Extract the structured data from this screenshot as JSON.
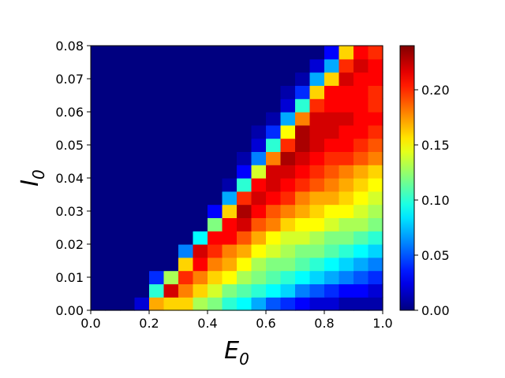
{
  "chart_data": {
    "type": "heatmap",
    "title": "",
    "xlabel": "E",
    "xlabel_sub": "0",
    "ylabel": "I",
    "ylabel_sub": "0",
    "xlim": [
      0.0,
      1.0
    ],
    "ylim": [
      0.0,
      0.08
    ],
    "x_ticks": [
      "0.0",
      "0.2",
      "0.4",
      "0.6",
      "0.8",
      "1.0"
    ],
    "y_ticks": [
      "0.00",
      "0.01",
      "0.02",
      "0.03",
      "0.04",
      "0.05",
      "0.06",
      "0.07",
      "0.08"
    ],
    "x_tick_values": [
      0.0,
      0.2,
      0.4,
      0.6,
      0.8,
      1.0
    ],
    "y_tick_values": [
      0.0,
      0.01,
      0.02,
      0.03,
      0.04,
      0.05,
      0.06,
      0.07,
      0.08
    ],
    "colorbar": {
      "colormap": "jet",
      "min": 0.0,
      "max": 0.24,
      "ticks": [
        "0.00",
        "0.05",
        "0.10",
        "0.15",
        "0.20"
      ],
      "tick_values": [
        0.0,
        0.05,
        0.1,
        0.15,
        0.2
      ]
    },
    "grid": false,
    "nx": 20,
    "ny": 20,
    "x_centers": [
      0.025,
      0.075,
      0.125,
      0.175,
      0.225,
      0.275,
      0.325,
      0.375,
      0.425,
      0.475,
      0.525,
      0.575,
      0.625,
      0.675,
      0.725,
      0.775,
      0.825,
      0.875,
      0.925,
      0.975
    ],
    "y_centers": [
      0.002,
      0.006,
      0.01,
      0.014,
      0.018,
      0.022,
      0.026,
      0.03,
      0.034,
      0.038,
      0.042,
      0.046,
      0.05,
      0.054,
      0.058,
      0.062,
      0.066,
      0.07,
      0.074,
      0.078
    ],
    "values_note": "rows ordered bottom (I0=0.002) to top (I0=0.078)",
    "values": [
      [
        0,
        0,
        0,
        0.02,
        0.17,
        0.16,
        0.16,
        0.13,
        0.12,
        0.1,
        0.09,
        0.07,
        0.05,
        0.04,
        0.03,
        0.02,
        0.02,
        0.01,
        0.01,
        0.01
      ],
      [
        0,
        0,
        0,
        0,
        0.1,
        0.22,
        0.18,
        0.16,
        0.14,
        0.12,
        0.11,
        0.1,
        0.09,
        0.08,
        0.06,
        0.05,
        0.04,
        0.03,
        0.03,
        0.02
      ],
      [
        0,
        0,
        0,
        0,
        0.04,
        0.13,
        0.2,
        0.18,
        0.16,
        0.15,
        0.13,
        0.12,
        0.11,
        0.1,
        0.09,
        0.08,
        0.07,
        0.06,
        0.05,
        0.04
      ],
      [
        0,
        0,
        0,
        0,
        0,
        0,
        0.16,
        0.21,
        0.18,
        0.17,
        0.15,
        0.13,
        0.12,
        0.12,
        0.11,
        0.1,
        0.09,
        0.08,
        0.07,
        0.06
      ],
      [
        0,
        0,
        0,
        0,
        0,
        0,
        0.06,
        0.22,
        0.2,
        0.18,
        0.17,
        0.15,
        0.14,
        0.13,
        0.12,
        0.12,
        0.11,
        0.1,
        0.09,
        0.08
      ],
      [
        0,
        0,
        0,
        0,
        0,
        0,
        0,
        0.09,
        0.21,
        0.21,
        0.19,
        0.17,
        0.15,
        0.14,
        0.14,
        0.13,
        0.12,
        0.12,
        0.11,
        0.1
      ],
      [
        0,
        0,
        0,
        0,
        0,
        0,
        0,
        0,
        0.12,
        0.21,
        0.22,
        0.19,
        0.18,
        0.16,
        0.15,
        0.15,
        0.14,
        0.13,
        0.13,
        0.12
      ],
      [
        0,
        0,
        0,
        0,
        0,
        0,
        0,
        0,
        0.03,
        0.16,
        0.23,
        0.21,
        0.19,
        0.18,
        0.17,
        0.16,
        0.15,
        0.15,
        0.14,
        0.13
      ],
      [
        0,
        0,
        0,
        0,
        0,
        0,
        0,
        0,
        0,
        0.07,
        0.2,
        0.22,
        0.21,
        0.2,
        0.18,
        0.17,
        0.17,
        0.16,
        0.15,
        0.14
      ],
      [
        0,
        0,
        0,
        0,
        0,
        0,
        0,
        0,
        0,
        0.01,
        0.1,
        0.21,
        0.22,
        0.21,
        0.2,
        0.19,
        0.18,
        0.17,
        0.16,
        0.15
      ],
      [
        0,
        0,
        0,
        0,
        0,
        0,
        0,
        0,
        0,
        0,
        0.03,
        0.14,
        0.22,
        0.22,
        0.21,
        0.2,
        0.19,
        0.18,
        0.17,
        0.16
      ],
      [
        0,
        0,
        0,
        0,
        0,
        0,
        0,
        0,
        0,
        0,
        0.01,
        0.06,
        0.18,
        0.23,
        0.22,
        0.21,
        0.2,
        0.2,
        0.19,
        0.18
      ],
      [
        0,
        0,
        0,
        0,
        0,
        0,
        0,
        0,
        0,
        0,
        0,
        0.02,
        0.1,
        0.2,
        0.23,
        0.22,
        0.21,
        0.21,
        0.2,
        0.19
      ],
      [
        0,
        0,
        0,
        0,
        0,
        0,
        0,
        0,
        0,
        0,
        0,
        0.01,
        0.04,
        0.15,
        0.23,
        0.22,
        0.22,
        0.21,
        0.21,
        0.2
      ],
      [
        0,
        0,
        0,
        0,
        0,
        0,
        0,
        0,
        0,
        0,
        0,
        0,
        0.01,
        0.07,
        0.18,
        0.22,
        0.22,
        0.22,
        0.21,
        0.21
      ],
      [
        0,
        0,
        0,
        0,
        0,
        0,
        0,
        0,
        0,
        0,
        0,
        0,
        0,
        0.02,
        0.1,
        0.2,
        0.21,
        0.21,
        0.21,
        0.2
      ],
      [
        0,
        0,
        0,
        0,
        0,
        0,
        0,
        0,
        0,
        0,
        0,
        0,
        0,
        0.01,
        0.04,
        0.16,
        0.21,
        0.21,
        0.21,
        0.2
      ],
      [
        0,
        0,
        0,
        0,
        0,
        0,
        0,
        0,
        0,
        0,
        0,
        0,
        0,
        0,
        0.01,
        0.07,
        0.16,
        0.22,
        0.21,
        0.21
      ],
      [
        0,
        0,
        0,
        0,
        0,
        0,
        0,
        0,
        0,
        0,
        0,
        0,
        0,
        0,
        0,
        0.02,
        0.07,
        0.2,
        0.22,
        0.21
      ],
      [
        0,
        0,
        0,
        0,
        0,
        0,
        0,
        0,
        0,
        0,
        0,
        0,
        0,
        0,
        0,
        0,
        0.03,
        0.16,
        0.21,
        0.2
      ]
    ]
  }
}
